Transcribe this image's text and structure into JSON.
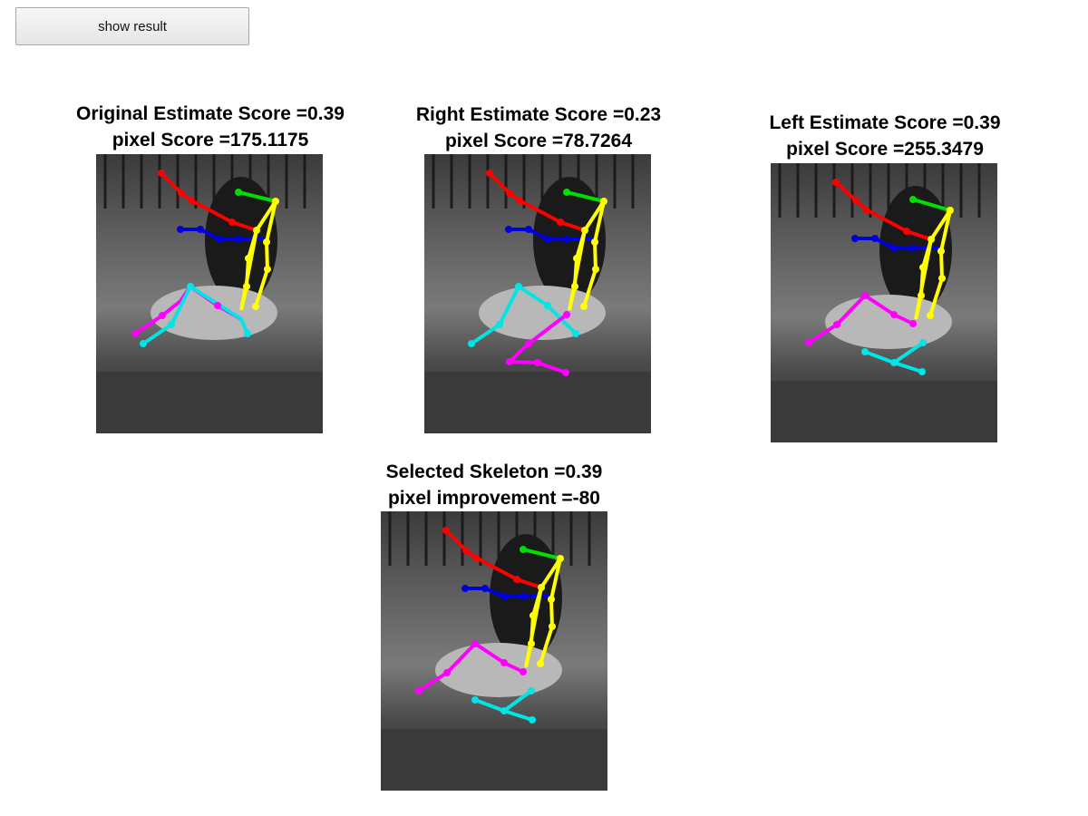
{
  "button": {
    "label": "show result"
  },
  "panels": [
    {
      "id": "original",
      "title_line1": "Original Estimate Score =0.39",
      "title_line2": "pixel Score =175.1175"
    },
    {
      "id": "right",
      "title_line1": "Right Estimate Score =0.23",
      "title_line2": "pixel Score =78.7264"
    },
    {
      "id": "left",
      "title_line1": "Left Estimate Score =0.39",
      "title_line2": "pixel Score =255.3479"
    },
    {
      "id": "selected",
      "title_line1": "Selected Skeleton =0.39",
      "title_line2": "pixel improvement =-80"
    }
  ],
  "limb_colors": {
    "right_arm": "#ff0000",
    "head": "#00dd00",
    "left_arm": "#0000dd",
    "torso": "#ffff00",
    "leg_magenta": "#ff00ff",
    "leg_cyan": "#00e5e5"
  }
}
